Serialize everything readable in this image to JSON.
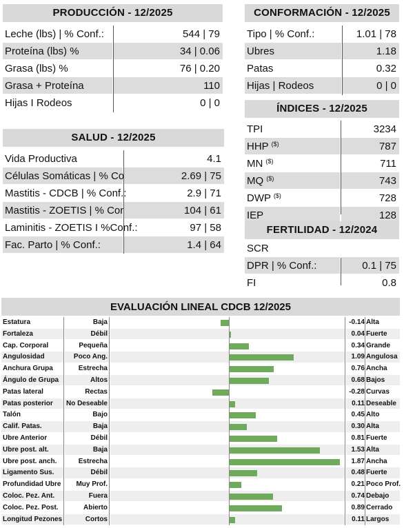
{
  "produccion": {
    "title": "PRODUCCIÓN - 12/2025",
    "rows": [
      {
        "label": "Leche (lbs) | % Conf.:",
        "value": "544 | 79"
      },
      {
        "label": "Proteína (lbs) %",
        "value": "34 | 0.06"
      },
      {
        "label": "Grasa (lbs) %",
        "value": "76 | 0.20"
      },
      {
        "label": "Grasa + Proteína",
        "value": "110"
      },
      {
        "label": "Hijas I Rodeos",
        "value": "0 | 0"
      }
    ]
  },
  "salud": {
    "title": "SALUD - 12/2025",
    "rows": [
      {
        "label": "Vida Productiva",
        "value": "4.1"
      },
      {
        "label": "Células Somáticas | % Conf.:",
        "value": "2.69 | 75"
      },
      {
        "label": "Mastitis - CDCB | % Conf.:",
        "value": "2.9 | 71"
      },
      {
        "label": "Mastitis - ZOETIS | % Conf.:",
        "value": "104 | 61"
      },
      {
        "label": "Laminitis - ZOETIS I %Conf.:",
        "value": "97 | 58"
      },
      {
        "label": "Fac. Parto | % Conf.:",
        "value": "1.4 | 64"
      }
    ]
  },
  "conformacion": {
    "title": "CONFORMACIÓN - 12/2025",
    "rows": [
      {
        "label": "Tipo | % Conf.:",
        "value": "1.01 | 78"
      },
      {
        "label": "Ubres",
        "value": "1.18"
      },
      {
        "label": "Patas",
        "value": "0.32"
      },
      {
        "label": "Hijas | Rodeos",
        "value": "0 | 0"
      }
    ]
  },
  "indices": {
    "title": "ÍNDICES - 12/2025",
    "rows": [
      {
        "label": "TPI",
        "sup": "",
        "value": "3234"
      },
      {
        "label": "HHP",
        "sup": "($)",
        "value": "787"
      },
      {
        "label": "MN",
        "sup": "($)",
        "value": "711"
      },
      {
        "label": "MQ",
        "sup": "($)",
        "value": "743"
      },
      {
        "label": "DWP",
        "sup": "($)",
        "value": "728"
      },
      {
        "label": "IEP",
        "sup": "",
        "value": "128"
      }
    ]
  },
  "fertilidad": {
    "title": "FERTILIDAD - 12/2024",
    "rows": [
      {
        "label": "SCR",
        "value": ""
      },
      {
        "label": "DPR | % Conf.:",
        "value": "0.1 | 75"
      },
      {
        "label": "FI",
        "value": "0.8"
      }
    ]
  },
  "lineal": {
    "title": "EVALUACIÓN LINEAL CDCB 12/2025",
    "bar_color": "#6fa95c",
    "scale_max": 2.0,
    "rows": [
      {
        "trait": "Estatura",
        "low": "Baja",
        "value": -0.14,
        "text": "-0.14",
        "high": "Alta"
      },
      {
        "trait": "Fortaleza",
        "low": "Débil",
        "value": 0.04,
        "text": "0.04",
        "high": "Fuerte"
      },
      {
        "trait": "Cap. Corporal",
        "low": "Pequeña",
        "value": 0.34,
        "text": "0.34",
        "high": "Grande"
      },
      {
        "trait": "Angulosidad",
        "low": "Poco Ang.",
        "value": 1.09,
        "text": "1.09",
        "high": "Angulosa"
      },
      {
        "trait": "Anchura Grupa",
        "low": "Estrecha",
        "value": 0.76,
        "text": "0.76",
        "high": "Ancha"
      },
      {
        "trait": "Ángulo de Grupa",
        "low": "Altos",
        "value": 0.68,
        "text": "0.68",
        "high": "Bajos"
      },
      {
        "trait": "Patas lateral",
        "low": "Rectas",
        "value": -0.28,
        "text": "-0.28",
        "high": "Curvas"
      },
      {
        "trait": "Patas posterior",
        "low": "No Deseable",
        "value": 0.11,
        "text": "0.11",
        "high": "Deseable"
      },
      {
        "trait": "Talón",
        "low": "Bajo",
        "value": 0.45,
        "text": "0.45",
        "high": "Alto"
      },
      {
        "trait": "Calif. Patas.",
        "low": "Baja",
        "value": 0.3,
        "text": "0.30",
        "high": "Alta"
      },
      {
        "trait": "Ubre Anterior",
        "low": "Débil",
        "value": 0.81,
        "text": "0.81",
        "high": "Fuerte"
      },
      {
        "trait": "Ubre post. alt.",
        "low": "Baja",
        "value": 1.53,
        "text": "1.53",
        "high": "Alta"
      },
      {
        "trait": "Ubre post. anch.",
        "low": "Estrecha",
        "value": 1.87,
        "text": "1.87",
        "high": "Ancha"
      },
      {
        "trait": "Ligamento Sus.",
        "low": "Débil",
        "value": 0.48,
        "text": "0.48",
        "high": "Fuerte"
      },
      {
        "trait": "Profundidad Ubre",
        "low": "Muy Prof.",
        "value": 0.21,
        "text": "0.21",
        "high": "Poco Prof."
      },
      {
        "trait": "Coloc. Pez. Ant.",
        "low": "Fuera",
        "value": 0.74,
        "text": "0.74",
        "high": "Debajo"
      },
      {
        "trait": "Coloc. Pez. Post.",
        "low": "Abierto",
        "value": 0.89,
        "text": "0.89",
        "high": "Cerrado"
      },
      {
        "trait": "Longitud Pezones",
        "low": "Cortos",
        "value": 0.11,
        "text": "0.11",
        "high": "Largos"
      }
    ]
  }
}
